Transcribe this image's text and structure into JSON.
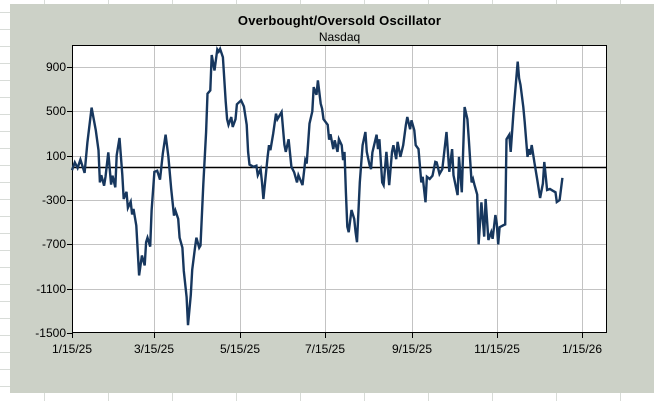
{
  "chart": {
    "title": "Overbought/Oversold Oscillator",
    "subtitle": "Nasdaq",
    "colors": {
      "series_line": "#17375e",
      "chart_background": "#ccd1c7",
      "plot_background": "#ffffff",
      "gridline": "#c3c3c3",
      "axis": "#000000",
      "zero_line": "#000000",
      "text": "#000000",
      "worksheet_background": "#ffffff",
      "worksheet_cell_line": "#d8dcd8"
    }
  },
  "chart_data": {
    "type": "line",
    "title": "Overbought/Oversold Oscillator",
    "subtitle": "Nasdaq",
    "legend": "none",
    "grid": true,
    "x_unit": "days since 2025-01-15",
    "x_tick_days": [
      0,
      59,
      120,
      181,
      243,
      304,
      365
    ],
    "x_tick_labels": [
      "1/15/25",
      "3/15/25",
      "5/15/25",
      "7/15/25",
      "9/15/25",
      "11/15/25",
      "1/15/26"
    ],
    "xlim_days": [
      0,
      382
    ],
    "ylim": [
      -1500,
      1100
    ],
    "y_tick_values": [
      900,
      500,
      100,
      -300,
      -700,
      -1100,
      -1500
    ],
    "y_tick_labels": [
      "900",
      "500",
      "100",
      "-300",
      "-700",
      "-1100",
      "-1500"
    ],
    "y_major_unit": 400,
    "zero_line_value": 0,
    "series": [
      {
        "name": "Nasdaq Overbought/Oversold Oscillator",
        "points": [
          [
            0,
            -30
          ],
          [
            2,
            40
          ],
          [
            4,
            -10
          ],
          [
            6,
            65
          ],
          [
            9,
            -55
          ],
          [
            11,
            220
          ],
          [
            14,
            535
          ],
          [
            17,
            330
          ],
          [
            19,
            150
          ],
          [
            20,
            -140
          ],
          [
            21,
            -75
          ],
          [
            23,
            -170
          ],
          [
            24,
            -90
          ],
          [
            26,
            130
          ],
          [
            28,
            -160
          ],
          [
            29,
            -80
          ],
          [
            31,
            -185
          ],
          [
            32,
            105
          ],
          [
            34,
            260
          ],
          [
            36,
            -70
          ],
          [
            37,
            -290
          ],
          [
            39,
            -225
          ],
          [
            40,
            -370
          ],
          [
            42,
            -315
          ],
          [
            43,
            -430
          ],
          [
            44,
            -380
          ],
          [
            46,
            -530
          ],
          [
            48,
            -980
          ],
          [
            50,
            -800
          ],
          [
            52,
            -890
          ],
          [
            53,
            -680
          ],
          [
            54,
            -640
          ],
          [
            56,
            -720
          ],
          [
            57,
            -395
          ],
          [
            59,
            -45
          ],
          [
            61,
            -35
          ],
          [
            63,
            -115
          ],
          [
            65,
            120
          ],
          [
            67,
            290
          ],
          [
            69,
            90
          ],
          [
            71,
            -200
          ],
          [
            73,
            -440
          ],
          [
            74,
            -395
          ],
          [
            76,
            -470
          ],
          [
            77,
            -640
          ],
          [
            79,
            -730
          ],
          [
            80,
            -940
          ],
          [
            82,
            -1175
          ],
          [
            83,
            -1430
          ],
          [
            85,
            -1155
          ],
          [
            86,
            -930
          ],
          [
            88,
            -730
          ],
          [
            89,
            -640
          ],
          [
            91,
            -730
          ],
          [
            92,
            -710
          ],
          [
            94,
            -160
          ],
          [
            96,
            315
          ],
          [
            97,
            660
          ],
          [
            99,
            690
          ],
          [
            100,
            1010
          ],
          [
            102,
            870
          ],
          [
            104,
            1060
          ],
          [
            105,
            1040
          ],
          [
            106,
            1065
          ],
          [
            108,
            990
          ],
          [
            110,
            590
          ],
          [
            111,
            430
          ],
          [
            112,
            380
          ],
          [
            114,
            450
          ],
          [
            115,
            360
          ],
          [
            117,
            430
          ],
          [
            118,
            565
          ],
          [
            121,
            600
          ],
          [
            123,
            545
          ],
          [
            125,
            380
          ],
          [
            126,
            135
          ],
          [
            127,
            20
          ],
          [
            130,
            0
          ],
          [
            132,
            10
          ],
          [
            133,
            -75
          ],
          [
            135,
            -20
          ],
          [
            136,
            -140
          ],
          [
            137,
            -290
          ],
          [
            140,
            90
          ],
          [
            141,
            195
          ],
          [
            142,
            150
          ],
          [
            144,
            300
          ],
          [
            146,
            480
          ],
          [
            147,
            430
          ],
          [
            150,
            495
          ],
          [
            152,
            200
          ],
          [
            153,
            135
          ],
          [
            155,
            250
          ],
          [
            157,
            0
          ],
          [
            159,
            -50
          ],
          [
            161,
            -140
          ],
          [
            162,
            -75
          ],
          [
            165,
            -165
          ],
          [
            167,
            60
          ],
          [
            168,
            30
          ],
          [
            170,
            390
          ],
          [
            172,
            500
          ],
          [
            173,
            720
          ],
          [
            175,
            650
          ],
          [
            176,
            780
          ],
          [
            178,
            570
          ],
          [
            179,
            525
          ],
          [
            180,
            430
          ],
          [
            183,
            380
          ],
          [
            184,
            245
          ],
          [
            185,
            295
          ],
          [
            187,
            160
          ],
          [
            188,
            240
          ],
          [
            190,
            135
          ],
          [
            191,
            250
          ],
          [
            193,
            195
          ],
          [
            194,
            60
          ],
          [
            195,
            135
          ],
          [
            196,
            -230
          ],
          [
            197,
            -540
          ],
          [
            198,
            -590
          ],
          [
            200,
            -390
          ],
          [
            202,
            -470
          ],
          [
            203,
            -590
          ],
          [
            204,
            -680
          ],
          [
            206,
            -140
          ],
          [
            208,
            195
          ],
          [
            210,
            315
          ],
          [
            211,
            135
          ],
          [
            213,
            15
          ],
          [
            214,
            -20
          ],
          [
            215,
            130
          ],
          [
            218,
            290
          ],
          [
            219,
            160
          ],
          [
            220,
            250
          ],
          [
            222,
            -140
          ],
          [
            223,
            -165
          ],
          [
            225,
            135
          ],
          [
            227,
            -165
          ],
          [
            229,
            135
          ],
          [
            230,
            195
          ],
          [
            232,
            70
          ],
          [
            233,
            225
          ],
          [
            235,
            90
          ],
          [
            237,
            195
          ],
          [
            239,
            380
          ],
          [
            240,
            450
          ],
          [
            242,
            340
          ],
          [
            243,
            420
          ],
          [
            245,
            330
          ],
          [
            246,
            195
          ],
          [
            248,
            160
          ],
          [
            250,
            -140
          ],
          [
            251,
            -90
          ],
          [
            253,
            -320
          ],
          [
            254,
            -90
          ],
          [
            256,
            -110
          ],
          [
            258,
            -80
          ],
          [
            260,
            45
          ],
          [
            261,
            40
          ],
          [
            263,
            -65
          ],
          [
            265,
            -20
          ],
          [
            266,
            90
          ],
          [
            268,
            315
          ],
          [
            270,
            -45
          ],
          [
            272,
            160
          ],
          [
            273,
            -75
          ],
          [
            276,
            -255
          ],
          [
            277,
            90
          ],
          [
            279,
            -230
          ],
          [
            281,
            540
          ],
          [
            283,
            430
          ],
          [
            284,
            250
          ],
          [
            286,
            -140
          ],
          [
            287,
            -110
          ],
          [
            288,
            -160
          ],
          [
            290,
            -250
          ],
          [
            291,
            -700
          ],
          [
            293,
            -320
          ],
          [
            295,
            -630
          ],
          [
            296,
            -290
          ],
          [
            298,
            -660
          ],
          [
            300,
            -590
          ],
          [
            301,
            -650
          ],
          [
            303,
            -435
          ],
          [
            304,
            -515
          ],
          [
            305,
            -700
          ],
          [
            306,
            -545
          ],
          [
            309,
            -525
          ],
          [
            310,
            -520
          ],
          [
            311,
            250
          ],
          [
            313,
            290
          ],
          [
            314,
            135
          ],
          [
            316,
            495
          ],
          [
            319,
            950
          ],
          [
            320,
            800
          ],
          [
            321,
            740
          ],
          [
            323,
            540
          ],
          [
            324,
            405
          ],
          [
            326,
            90
          ],
          [
            327,
            160
          ],
          [
            328,
            110
          ],
          [
            329,
            197
          ],
          [
            331,
            35
          ],
          [
            333,
            -119
          ],
          [
            335,
            -281
          ],
          [
            337,
            -150
          ],
          [
            338,
            44
          ],
          [
            340,
            -209
          ],
          [
            342,
            -200
          ],
          [
            344,
            -215
          ],
          [
            346,
            -230
          ],
          [
            347,
            -317
          ],
          [
            349,
            -300
          ],
          [
            351,
            -100
          ]
        ]
      }
    ]
  }
}
